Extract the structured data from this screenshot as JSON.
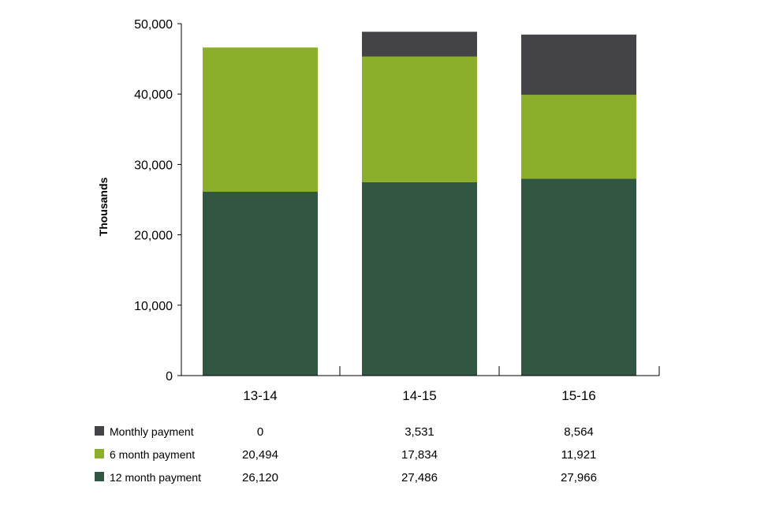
{
  "chart_data": {
    "type": "bar",
    "stacked": true,
    "categories": [
      "13-14",
      "14-15",
      "15-16"
    ],
    "series": [
      {
        "name": "12 month payment",
        "values": [
          26120,
          27486,
          27966
        ],
        "color": "#315742"
      },
      {
        "name": "6 month payment",
        "values": [
          20494,
          17834,
          11921
        ],
        "color": "#8caf2b"
      },
      {
        "name": "Monthly payment",
        "values": [
          0,
          3531,
          8564
        ],
        "color": "#444448"
      }
    ],
    "table_rows": [
      {
        "name": "Monthly payment",
        "values": [
          "0",
          "3,531",
          "8,564"
        ]
      },
      {
        "name": "6 month payment",
        "values": [
          "20,494",
          "17,834",
          "11,921"
        ]
      },
      {
        "name": "12 month payment",
        "values": [
          "26,120",
          "27,486",
          "27,966"
        ]
      }
    ],
    "yticks": [
      "0",
      "10,000",
      "20,000",
      "30,000",
      "40,000",
      "50,000"
    ],
    "ylabel": "Thousands",
    "xlabel": "",
    "title": "",
    "ylim": [
      0,
      50000
    ],
    "grid": false,
    "legend": "bottom-left data table"
  }
}
